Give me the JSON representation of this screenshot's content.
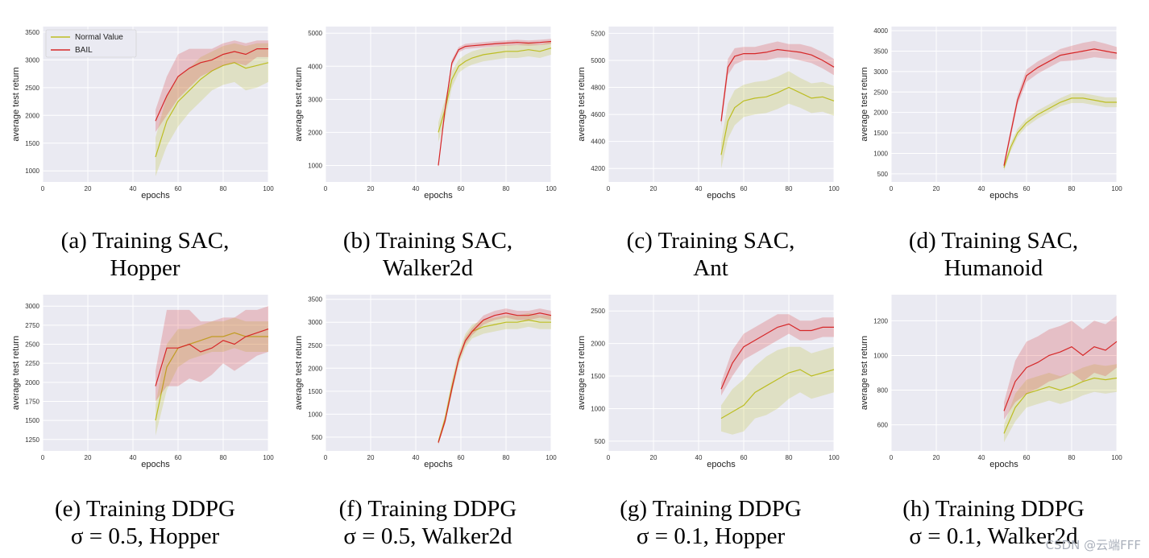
{
  "figure": {
    "watermark": "CSDN @云端FFF"
  },
  "legend": {
    "normal": "Normal Value",
    "bail": "BAIL"
  },
  "colors": {
    "normal": "#bcbd22",
    "bail": "#d62728",
    "plot_bg": "#eaeaf2",
    "grid": "#ffffff"
  },
  "chart_data": [
    {
      "type": "line",
      "caption_line1": "(a) Training SAC,",
      "caption_line2": "Hopper",
      "xlabel": "epochs",
      "ylabel": "average test return",
      "xlim": [
        0,
        100
      ],
      "ylim": [
        800,
        3600
      ],
      "xticks": [
        0,
        20,
        40,
        60,
        80,
        100
      ],
      "yticks": [
        1000,
        1500,
        2000,
        2500,
        3000,
        3500
      ],
      "legend": "top-left",
      "x": [
        50,
        55,
        60,
        65,
        70,
        75,
        80,
        85,
        90,
        95,
        100
      ],
      "series": [
        {
          "name": "Normal Value",
          "values": [
            1250,
            1900,
            2250,
            2450,
            2650,
            2800,
            2900,
            2950,
            2850,
            2900,
            2950
          ],
          "band": [
            350,
            450,
            450,
            400,
            400,
            350,
            350,
            350,
            400,
            400,
            350
          ]
        },
        {
          "name": "BAIL",
          "values": [
            1900,
            2350,
            2700,
            2850,
            2950,
            3000,
            3100,
            3150,
            3100,
            3200,
            3200
          ],
          "band": [
            200,
            350,
            400,
            350,
            250,
            200,
            200,
            200,
            200,
            150,
            150
          ]
        }
      ]
    },
    {
      "type": "line",
      "caption_line1": "(b) Training SAC,",
      "caption_line2": "Walker2d",
      "xlabel": "epochs",
      "ylabel": "average test return",
      "xlim": [
        0,
        100
      ],
      "ylim": [
        500,
        5200
      ],
      "xticks": [
        0,
        20,
        40,
        60,
        80,
        100
      ],
      "yticks": [
        1000,
        2000,
        3000,
        4000,
        5000
      ],
      "legend": "none",
      "x": [
        50,
        53,
        56,
        59,
        62,
        65,
        70,
        75,
        80,
        85,
        90,
        95,
        100
      ],
      "series": [
        {
          "name": "Normal Value",
          "values": [
            2000,
            2700,
            3600,
            4000,
            4150,
            4250,
            4350,
            4400,
            4450,
            4450,
            4500,
            4450,
            4550
          ],
          "band": [
            300,
            300,
            250,
            200,
            200,
            200,
            200,
            200,
            200,
            200,
            200,
            200,
            200
          ]
        },
        {
          "name": "BAIL",
          "values": [
            1000,
            2700,
            4100,
            4500,
            4600,
            4620,
            4650,
            4680,
            4700,
            4720,
            4700,
            4720,
            4750
          ],
          "band": [
            50,
            100,
            100,
            80,
            80,
            80,
            80,
            80,
            80,
            80,
            80,
            80,
            80
          ]
        }
      ]
    },
    {
      "type": "line",
      "caption_line1": "(c) Training SAC,",
      "caption_line2": "Ant",
      "xlabel": "epochs",
      "ylabel": "average test return",
      "xlim": [
        0,
        100
      ],
      "ylim": [
        4100,
        5250
      ],
      "xticks": [
        0,
        20,
        40,
        60,
        80,
        100
      ],
      "yticks": [
        4200,
        4400,
        4600,
        4800,
        5000,
        5200
      ],
      "legend": "none",
      "x": [
        50,
        53,
        56,
        60,
        65,
        70,
        75,
        80,
        85,
        90,
        95,
        100
      ],
      "series": [
        {
          "name": "Normal Value",
          "values": [
            4300,
            4550,
            4650,
            4700,
            4720,
            4730,
            4760,
            4800,
            4760,
            4720,
            4730,
            4700
          ],
          "band": [
            100,
            130,
            130,
            120,
            120,
            120,
            120,
            120,
            110,
            110,
            110,
            110
          ]
        },
        {
          "name": "BAIL",
          "values": [
            4550,
            4950,
            5030,
            5050,
            5050,
            5060,
            5080,
            5070,
            5060,
            5040,
            5000,
            4950
          ],
          "band": [
            40,
            60,
            60,
            50,
            50,
            60,
            60,
            50,
            60,
            60,
            60,
            60
          ]
        }
      ]
    },
    {
      "type": "line",
      "caption_line1": "(d) Training SAC,",
      "caption_line2": "Humanoid",
      "xlabel": "epochs",
      "ylabel": "average test return",
      "xlim": [
        0,
        100
      ],
      "ylim": [
        300,
        4100
      ],
      "xticks": [
        0,
        20,
        40,
        60,
        80,
        100
      ],
      "yticks": [
        500,
        1000,
        1500,
        2000,
        2500,
        3000,
        3500,
        4000
      ],
      "legend": "none",
      "x": [
        50,
        53,
        56,
        60,
        65,
        70,
        75,
        80,
        85,
        90,
        95,
        100
      ],
      "series": [
        {
          "name": "Normal Value",
          "values": [
            650,
            1150,
            1500,
            1750,
            1950,
            2100,
            2250,
            2350,
            2350,
            2300,
            2250,
            2250
          ],
          "band": [
            80,
            100,
            100,
            100,
            100,
            100,
            100,
            120,
            120,
            120,
            120,
            120
          ]
        },
        {
          "name": "BAIL",
          "values": [
            700,
            1500,
            2300,
            2900,
            3100,
            3250,
            3400,
            3450,
            3500,
            3550,
            3500,
            3450
          ],
          "band": [
            80,
            100,
            120,
            150,
            150,
            150,
            150,
            180,
            200,
            200,
            180,
            150
          ]
        }
      ]
    },
    {
      "type": "line",
      "caption_line1": "(e) Training DDPG",
      "caption_line2": "σ = 0.5, Hopper",
      "xlabel": "epochs",
      "ylabel": "average test return",
      "xlim": [
        0,
        100
      ],
      "ylim": [
        1100,
        3150
      ],
      "xticks": [
        0,
        20,
        40,
        60,
        80,
        100
      ],
      "yticks": [
        1250,
        1500,
        1750,
        2000,
        2250,
        2500,
        2750,
        3000
      ],
      "legend": "none",
      "x": [
        50,
        55,
        60,
        65,
        70,
        75,
        80,
        85,
        90,
        95,
        100
      ],
      "series": [
        {
          "name": "Normal Value",
          "values": [
            1500,
            2200,
            2450,
            2500,
            2550,
            2600,
            2600,
            2650,
            2600,
            2600,
            2600
          ],
          "band": [
            200,
            300,
            250,
            200,
            200,
            200,
            200,
            200,
            200,
            200,
            200
          ]
        },
        {
          "name": "BAIL",
          "values": [
            1950,
            2450,
            2450,
            2500,
            2400,
            2450,
            2550,
            2500,
            2600,
            2650,
            2700
          ],
          "band": [
            200,
            500,
            500,
            450,
            400,
            350,
            300,
            350,
            350,
            300,
            300
          ]
        }
      ]
    },
    {
      "type": "line",
      "caption_line1": "(f) Training DDPG",
      "caption_line2": "σ = 0.5, Walker2d",
      "xlabel": "epochs",
      "ylabel": "average test return",
      "xlim": [
        0,
        100
      ],
      "ylim": [
        200,
        3600
      ],
      "xticks": [
        0,
        20,
        40,
        60,
        80,
        100
      ],
      "yticks": [
        500,
        1000,
        1500,
        2000,
        2500,
        3000,
        3500
      ],
      "legend": "none",
      "x": [
        50,
        53,
        56,
        59,
        62,
        65,
        70,
        75,
        80,
        85,
        90,
        95,
        100
      ],
      "series": [
        {
          "name": "Normal Value",
          "values": [
            400,
            900,
            1600,
            2200,
            2600,
            2800,
            2900,
            2950,
            3000,
            3000,
            3050,
            3000,
            3000
          ],
          "band": [
            60,
            100,
            150,
            150,
            150,
            150,
            150,
            150,
            150,
            150,
            150,
            150,
            150
          ]
        },
        {
          "name": "BAIL",
          "values": [
            380,
            850,
            1550,
            2200,
            2600,
            2800,
            3050,
            3150,
            3200,
            3150,
            3150,
            3200,
            3150
          ],
          "band": [
            40,
            60,
            80,
            80,
            80,
            80,
            100,
            100,
            100,
            100,
            100,
            100,
            100
          ]
        }
      ]
    },
    {
      "type": "line",
      "caption_line1": "(g) Training DDPG",
      "caption_line2": "σ = 0.1, Hopper",
      "xlabel": "epochs",
      "ylabel": "average test return",
      "xlim": [
        0,
        100
      ],
      "ylim": [
        350,
        2750
      ],
      "xticks": [
        0,
        20,
        40,
        60,
        80,
        100
      ],
      "yticks": [
        500,
        1000,
        1500,
        2000,
        2500
      ],
      "legend": "none",
      "x": [
        50,
        55,
        60,
        65,
        70,
        75,
        80,
        85,
        90,
        95,
        100
      ],
      "series": [
        {
          "name": "Normal Value",
          "values": [
            850,
            950,
            1050,
            1250,
            1350,
            1450,
            1550,
            1600,
            1500,
            1550,
            1600
          ],
          "band": [
            200,
            350,
            400,
            400,
            450,
            450,
            400,
            350,
            350,
            350,
            350
          ]
        },
        {
          "name": "BAIL",
          "values": [
            1300,
            1700,
            1950,
            2050,
            2150,
            2250,
            2300,
            2200,
            2200,
            2250,
            2250
          ],
          "band": [
            100,
            200,
            200,
            200,
            200,
            200,
            150,
            150,
            150,
            150,
            150
          ]
        }
      ]
    },
    {
      "type": "line",
      "caption_line1": "(h) Training DDPG",
      "caption_line2": "σ = 0.1, Walker2d",
      "xlabel": "epochs",
      "ylabel": "average test return",
      "xlim": [
        0,
        100
      ],
      "ylim": [
        450,
        1350
      ],
      "xticks": [
        0,
        20,
        40,
        60,
        80,
        100
      ],
      "yticks": [
        600,
        800,
        1000,
        1200
      ],
      "legend": "none",
      "x": [
        50,
        55,
        60,
        65,
        70,
        75,
        80,
        85,
        90,
        95,
        100
      ],
      "series": [
        {
          "name": "Normal Value",
          "values": [
            550,
            700,
            780,
            800,
            820,
            800,
            820,
            850,
            870,
            860,
            870
          ],
          "band": [
            50,
            80,
            80,
            80,
            80,
            80,
            80,
            80,
            80,
            80,
            80
          ]
        },
        {
          "name": "BAIL",
          "values": [
            680,
            850,
            930,
            960,
            1000,
            1020,
            1050,
            1000,
            1050,
            1030,
            1080
          ],
          "band": [
            50,
            120,
            150,
            150,
            150,
            150,
            150,
            150,
            150,
            150,
            150
          ]
        }
      ]
    }
  ]
}
